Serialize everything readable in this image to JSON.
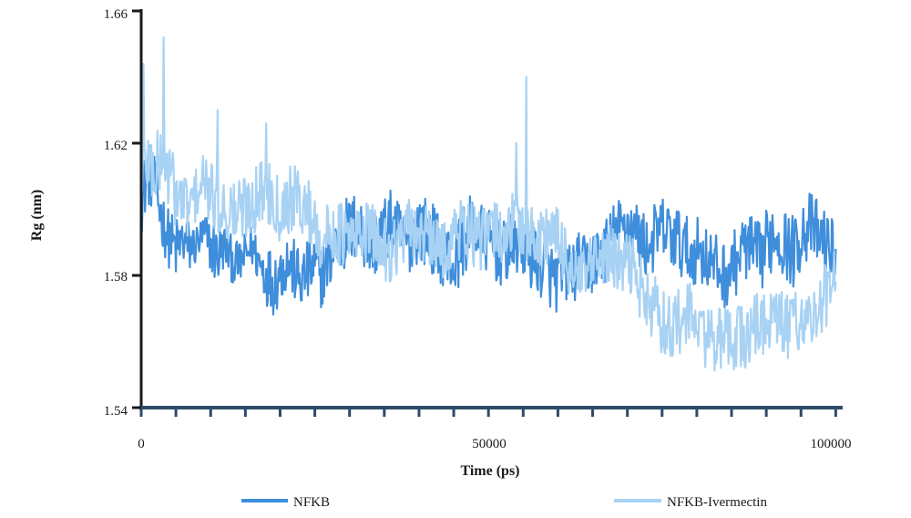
{
  "chart_data": {
    "type": "line",
    "title": "",
    "xlabel": "Time (ps)",
    "ylabel": "Rg (nm)",
    "xlim": [
      0,
      101000
    ],
    "ylim": [
      1.54,
      1.66
    ],
    "x_ticks": [
      0,
      50000,
      100000
    ],
    "x_tick_labels": [
      "0",
      "50000",
      "100000"
    ],
    "y_ticks": [
      1.54,
      1.58,
      1.62,
      1.66
    ],
    "y_tick_labels": [
      "1.54",
      "1.58",
      "1.62",
      "1.66"
    ],
    "grid": false,
    "legend_position": "bottom",
    "x_step": 1000,
    "series": [
      {
        "name": "NFKB",
        "color": "#3f8edc",
        "values_min": [
          1.592,
          1.601,
          1.598,
          1.588,
          1.582,
          1.578,
          1.582,
          1.58,
          1.583,
          1.586,
          1.58,
          1.576,
          1.582,
          1.578,
          1.576,
          1.579,
          1.582,
          1.576,
          1.571,
          1.568,
          1.571,
          1.575,
          1.572,
          1.568,
          1.571,
          1.572,
          1.57,
          1.574,
          1.578,
          1.58,
          1.582,
          1.584,
          1.582,
          1.578,
          1.58,
          1.584,
          1.585,
          1.582,
          1.578,
          1.582,
          1.584,
          1.582,
          1.58,
          1.578,
          1.575,
          1.572,
          1.578,
          1.582,
          1.584,
          1.582,
          1.58,
          1.578,
          1.576,
          1.578,
          1.58,
          1.578,
          1.576,
          1.574,
          1.572,
          1.57,
          1.568,
          1.572,
          1.571,
          1.574,
          1.572,
          1.574,
          1.576,
          1.578,
          1.582,
          1.584,
          1.585,
          1.584,
          1.58,
          1.578,
          1.582,
          1.584,
          1.582,
          1.58,
          1.578,
          1.576,
          1.578,
          1.576,
          1.574,
          1.572,
          1.57,
          1.572,
          1.575,
          1.578,
          1.576,
          1.574,
          1.578,
          1.582,
          1.58,
          1.578,
          1.576,
          1.582,
          1.584,
          1.582,
          1.58,
          1.578,
          1.578
        ],
        "values_max": [
          1.612,
          1.622,
          1.616,
          1.606,
          1.6,
          1.598,
          1.599,
          1.597,
          1.596,
          1.599,
          1.598,
          1.596,
          1.596,
          1.592,
          1.59,
          1.593,
          1.596,
          1.592,
          1.59,
          1.588,
          1.591,
          1.594,
          1.591,
          1.588,
          1.591,
          1.593,
          1.59,
          1.596,
          1.601,
          1.605,
          1.604,
          1.606,
          1.603,
          1.6,
          1.602,
          1.604,
          1.606,
          1.603,
          1.6,
          1.603,
          1.606,
          1.604,
          1.602,
          1.598,
          1.596,
          1.594,
          1.6,
          1.604,
          1.604,
          1.602,
          1.6,
          1.598,
          1.596,
          1.598,
          1.6,
          1.599,
          1.597,
          1.594,
          1.592,
          1.59,
          1.588,
          1.591,
          1.59,
          1.593,
          1.592,
          1.594,
          1.596,
          1.598,
          1.602,
          1.604,
          1.606,
          1.604,
          1.601,
          1.598,
          1.602,
          1.604,
          1.603,
          1.602,
          1.6,
          1.596,
          1.598,
          1.597,
          1.594,
          1.592,
          1.59,
          1.592,
          1.596,
          1.6,
          1.598,
          1.596,
          1.6,
          1.604,
          1.603,
          1.6,
          1.598,
          1.604,
          1.606,
          1.604,
          1.602,
          1.598,
          1.598
        ]
      },
      {
        "name": "NFKB-Ivermectin",
        "color": "#a8d2f4",
        "values_min": [
          1.602,
          1.604,
          1.6,
          1.604,
          1.6,
          1.594,
          1.592,
          1.59,
          1.596,
          1.598,
          1.594,
          1.592,
          1.59,
          1.588,
          1.588,
          1.59,
          1.592,
          1.594,
          1.596,
          1.594,
          1.59,
          1.592,
          1.594,
          1.592,
          1.59,
          1.586,
          1.58,
          1.582,
          1.584,
          1.582,
          1.58,
          1.582,
          1.584,
          1.582,
          1.58,
          1.578,
          1.578,
          1.58,
          1.582,
          1.584,
          1.584,
          1.582,
          1.58,
          1.578,
          1.58,
          1.582,
          1.584,
          1.584,
          1.582,
          1.58,
          1.582,
          1.584,
          1.582,
          1.584,
          1.586,
          1.584,
          1.582,
          1.58,
          1.582,
          1.584,
          1.58,
          1.576,
          1.572,
          1.568,
          1.57,
          1.572,
          1.574,
          1.576,
          1.575,
          1.572,
          1.574,
          1.572,
          1.566,
          1.56,
          1.56,
          1.556,
          1.554,
          1.556,
          1.556,
          1.558,
          1.555,
          1.552,
          1.552,
          1.55,
          1.55,
          1.551,
          1.552,
          1.55,
          1.554,
          1.556,
          1.555,
          1.556,
          1.556,
          1.554,
          1.558,
          1.556,
          1.558,
          1.556,
          1.562,
          1.566,
          1.568
        ],
        "values_max": [
          1.62,
          1.626,
          1.622,
          1.628,
          1.622,
          1.615,
          1.612,
          1.61,
          1.614,
          1.618,
          1.614,
          1.612,
          1.61,
          1.61,
          1.61,
          1.612,
          1.614,
          1.615,
          1.616,
          1.614,
          1.611,
          1.613,
          1.614,
          1.611,
          1.61,
          1.606,
          1.6,
          1.602,
          1.604,
          1.602,
          1.6,
          1.601,
          1.604,
          1.602,
          1.6,
          1.598,
          1.598,
          1.6,
          1.602,
          1.604,
          1.603,
          1.601,
          1.599,
          1.597,
          1.6,
          1.602,
          1.604,
          1.603,
          1.601,
          1.6,
          1.602,
          1.604,
          1.602,
          1.604,
          1.606,
          1.604,
          1.602,
          1.6,
          1.602,
          1.604,
          1.6,
          1.596,
          1.592,
          1.588,
          1.59,
          1.592,
          1.594,
          1.596,
          1.595,
          1.592,
          1.594,
          1.592,
          1.586,
          1.58,
          1.58,
          1.576,
          1.574,
          1.576,
          1.576,
          1.578,
          1.575,
          1.572,
          1.572,
          1.57,
          1.57,
          1.571,
          1.572,
          1.57,
          1.574,
          1.576,
          1.575,
          1.576,
          1.576,
          1.574,
          1.578,
          1.576,
          1.578,
          1.576,
          1.582,
          1.586,
          1.588
        ],
        "spikes": [
          {
            "x": 300,
            "y": 1.644
          },
          {
            "x": 3200,
            "y": 1.652
          },
          {
            "x": 11000,
            "y": 1.63
          },
          {
            "x": 18000,
            "y": 1.626
          },
          {
            "x": 55500,
            "y": 1.64
          },
          {
            "x": 54000,
            "y": 1.62
          }
        ]
      }
    ]
  }
}
